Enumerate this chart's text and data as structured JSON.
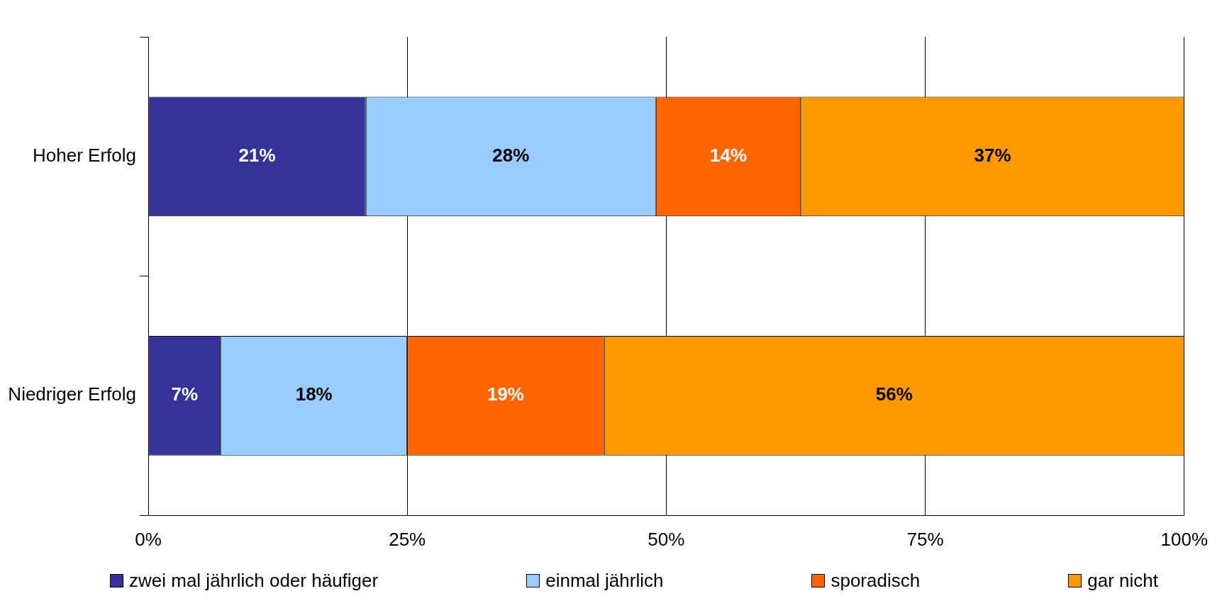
{
  "chart_data": {
    "type": "bar",
    "orientation": "horizontal",
    "stacked": true,
    "categories": [
      "Hoher Erfolg",
      "Niedriger Erfolg"
    ],
    "series": [
      {
        "name": "zwei mal jährlich oder häufiger",
        "color": "#333399",
        "values": [
          21,
          7
        ],
        "value_labels": [
          "21%",
          "7%"
        ]
      },
      {
        "name": "einmal jährlich",
        "color": "#99ccff",
        "values": [
          28,
          18
        ],
        "value_labels": [
          "28%",
          "18%"
        ]
      },
      {
        "name": "sporadisch",
        "color": "#ff6600",
        "values": [
          14,
          19
        ],
        "value_labels": [
          "14%",
          "19%"
        ]
      },
      {
        "name": "gar nicht",
        "color": "#ff9900",
        "values": [
          37,
          56
        ],
        "value_labels": [
          "37%",
          "56%"
        ]
      }
    ],
    "xlim": [
      0,
      100
    ],
    "xticks": [
      {
        "value": 0,
        "label": "0%"
      },
      {
        "value": 25,
        "label": "25%"
      },
      {
        "value": 50,
        "label": "50%"
      },
      {
        "value": 75,
        "label": "75%"
      },
      {
        "value": 100,
        "label": "100%"
      }
    ],
    "grid": "x",
    "legend": "bottom"
  }
}
